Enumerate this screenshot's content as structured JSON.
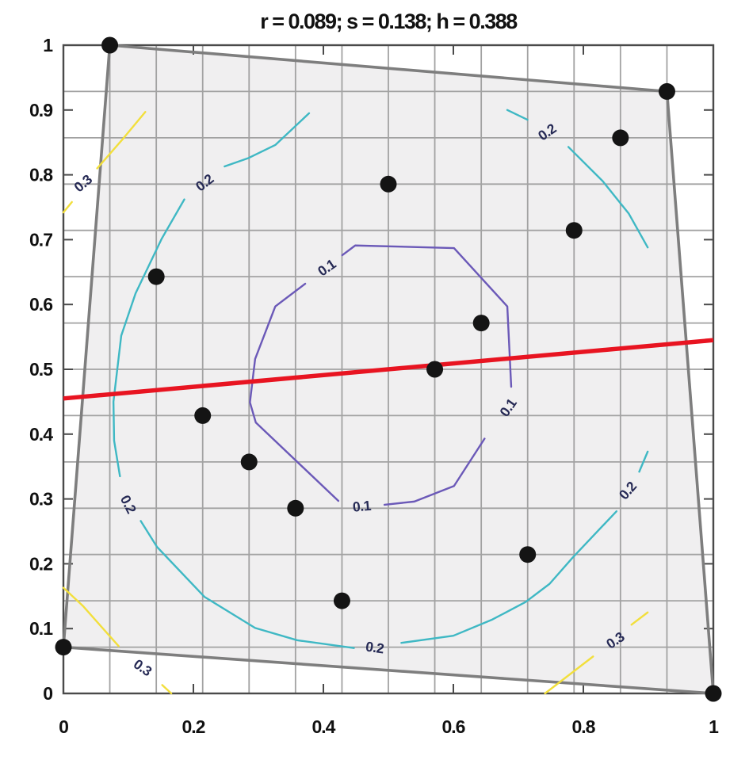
{
  "title": "r = 0.089; s = 0.138; h = 0.388",
  "chart_data": {
    "type": "scatter",
    "title": "r = 0.089; s = 0.138; h = 0.388",
    "stats": {
      "r": "0.089",
      "s": "0.138",
      "h": "0.388"
    },
    "xlim": [
      0,
      1
    ],
    "ylim": [
      0,
      1
    ],
    "grid": "on",
    "x_ticks": {
      "values": [
        0,
        0.2,
        0.4,
        0.6,
        0.8,
        1
      ],
      "labels": [
        "0",
        "0.2",
        "0.4",
        "0.6",
        "0.8",
        "1"
      ]
    },
    "y_ticks": {
      "values": [
        0,
        0.1,
        0.2,
        0.3,
        0.4,
        0.5,
        0.6,
        0.7,
        0.8,
        0.9,
        1
      ],
      "labels": [
        "0",
        "0.1",
        "0.2",
        "0.3",
        "0.4",
        "0.5",
        "0.6",
        "0.7",
        "0.8",
        "0.9",
        "1"
      ]
    },
    "minor_tick_values_x": [
      0.2,
      0.4,
      0.6,
      0.8
    ],
    "minor_tick_values_y": [
      0.1,
      0.2,
      0.3,
      0.4,
      0.5,
      0.6,
      0.7,
      0.8,
      0.9
    ],
    "grid_values": [
      0.0714,
      0.1429,
      0.2143,
      0.2857,
      0.3571,
      0.4286,
      0.5,
      0.5714,
      0.6429,
      0.7143,
      0.7857,
      0.8571,
      0.9286
    ],
    "points": [
      [
        0,
        0.0714
      ],
      [
        0.0714,
        1
      ],
      [
        0.1429,
        0.6429
      ],
      [
        0.2143,
        0.4286
      ],
      [
        0.2857,
        0.3571
      ],
      [
        0.3571,
        0.2857
      ],
      [
        0.4286,
        0.1429
      ],
      [
        0.5,
        0.7857
      ],
      [
        0.5714,
        0.5
      ],
      [
        0.6429,
        0.5714
      ],
      [
        0.7143,
        0.2143
      ],
      [
        0.7857,
        0.7143
      ],
      [
        0.8571,
        0.8571
      ],
      [
        0.9286,
        0.9286
      ],
      [
        1,
        0
      ]
    ],
    "convex_hull": [
      [
        0.0714,
        1
      ],
      [
        0.9286,
        0.9286
      ],
      [
        1,
        0
      ],
      [
        0,
        0.0714
      ]
    ],
    "regression_line": {
      "from": [
        0,
        0.455
      ],
      "to": [
        1,
        0.545
      ]
    },
    "contours": [
      {
        "level": "0.3",
        "color": "#f2df3c",
        "segments": [
          [
            [
              0,
              0.742
            ],
            [
              0.013,
              0.758
            ]
          ],
          [
            [
              0.052,
              0.81
            ],
            [
              0.092,
              0.856
            ],
            [
              0.126,
              0.897
            ]
          ],
          [
            [
              0,
              0.163
            ],
            [
              0.03,
              0.135
            ],
            [
              0.085,
              0.073
            ]
          ],
          [
            [
              0.152,
              0.013
            ],
            [
              0.166,
              0
            ]
          ],
          [
            [
              0.741,
              0
            ],
            [
              0.815,
              0.057
            ]
          ],
          [
            [
              0.874,
              0.106
            ],
            [
              0.899,
              0.125
            ]
          ]
        ],
        "labels": [
          {
            "text": "0.3",
            "x": 0.03,
            "y": 0.787,
            "rot": -40
          },
          {
            "text": "0.3",
            "x": 0.122,
            "y": 0.04,
            "rot": 35
          },
          {
            "text": "0.3",
            "x": 0.849,
            "y": 0.082,
            "rot": -34
          }
        ]
      },
      {
        "level": "0.2",
        "color": "#3fb8c4",
        "segments": [
          [
            [
              0.378,
              0.895
            ],
            [
              0.326,
              0.846
            ],
            [
              0.285,
              0.826
            ],
            [
              0.248,
              0.813
            ]
          ],
          [
            [
              0.186,
              0.762
            ],
            [
              0.151,
              0.701
            ],
            [
              0.111,
              0.617
            ],
            [
              0.089,
              0.552
            ],
            [
              0.077,
              0.45
            ],
            [
              0.078,
              0.39
            ],
            [
              0.087,
              0.335
            ]
          ],
          [
            [
              0.119,
              0.266
            ],
            [
              0.144,
              0.226
            ],
            [
              0.217,
              0.149
            ],
            [
              0.295,
              0.101
            ],
            [
              0.36,
              0.082
            ],
            [
              0.447,
              0.07
            ]
          ],
          [
            [
              0.52,
              0.078
            ],
            [
              0.6,
              0.089
            ],
            [
              0.66,
              0.114
            ],
            [
              0.711,
              0.141
            ],
            [
              0.748,
              0.169
            ],
            [
              0.784,
              0.21
            ],
            [
              0.851,
              0.281
            ]
          ],
          [
            [
              0.886,
              0.342
            ],
            [
              0.899,
              0.373
            ]
          ],
          [
            [
              0.683,
              0.9
            ],
            [
              0.714,
              0.885
            ]
          ],
          [
            [
              0.777,
              0.843
            ],
            [
              0.83,
              0.79
            ],
            [
              0.87,
              0.74
            ],
            [
              0.899,
              0.688
            ]
          ]
        ],
        "labels": [
          {
            "text": "0.2",
            "x": 0.217,
            "y": 0.788,
            "rot": -38
          },
          {
            "text": "0.2",
            "x": 0.1,
            "y": 0.292,
            "rot": 63
          },
          {
            "text": "0.2",
            "x": 0.479,
            "y": 0.071,
            "rot": 8
          },
          {
            "text": "0.2",
            "x": 0.868,
            "y": 0.313,
            "rot": -49
          },
          {
            "text": "0.2",
            "x": 0.744,
            "y": 0.866,
            "rot": -35
          }
        ]
      },
      {
        "level": "0.1",
        "color": "#6b59b8",
        "segments": [
          [
            [
              0.429,
              0.676
            ],
            [
              0.449,
              0.691
            ],
            [
              0.601,
              0.687
            ],
            [
              0.683,
              0.597
            ],
            [
              0.689,
              0.473
            ]
          ],
          [
            [
              0.648,
              0.393
            ],
            [
              0.601,
              0.32
            ],
            [
              0.54,
              0.296
            ],
            [
              0.494,
              0.291
            ]
          ],
          [
            [
              0.423,
              0.297
            ],
            [
              0.296,
              0.418
            ],
            [
              0.287,
              0.449
            ],
            [
              0.295,
              0.516
            ],
            [
              0.326,
              0.597
            ],
            [
              0.372,
              0.632
            ]
          ]
        ],
        "labels": [
          {
            "text": "0.1",
            "x": 0.405,
            "y": 0.657,
            "rot": -35
          },
          {
            "text": "0.1",
            "x": 0.684,
            "y": 0.441,
            "rot": -55
          },
          {
            "text": "0.1",
            "x": 0.459,
            "y": 0.289,
            "rot": -5
          }
        ]
      }
    ],
    "colors": {
      "regression_line": "#e81421",
      "contour_01": "#6b59b8",
      "contour_02": "#3fb8c4",
      "contour_03": "#f2df3c",
      "hull_fill": "#f0eff0",
      "hull_edge": "#7e7e7e",
      "grid": "#a2a2a2",
      "axis_box": "#4a4a4a",
      "data_point": "#141414",
      "contour_label_text": "#262a55"
    }
  }
}
